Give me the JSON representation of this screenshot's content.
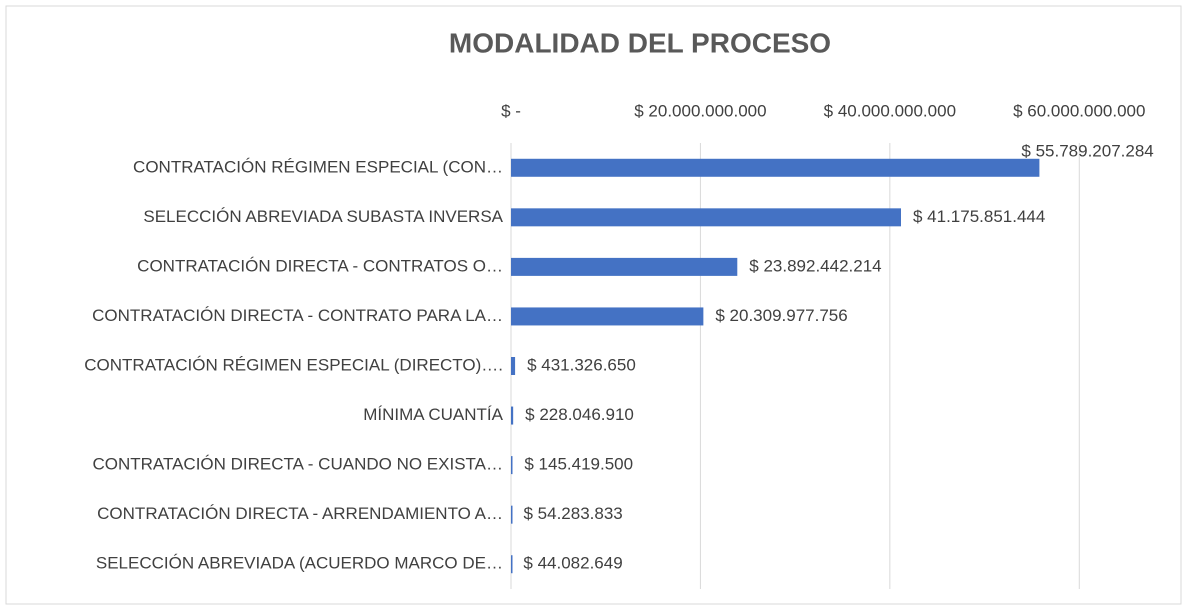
{
  "chart_data": {
    "type": "bar",
    "orientation": "horizontal",
    "title": "MODALIDAD DEL PROCESO",
    "categories": [
      "CONTRATACIÓN RÉGIMEN ESPECIAL (CON…",
      "SELECCIÓN ABREVIADA SUBASTA INVERSA",
      "CONTRATACIÓN DIRECTA - CONTRATOS O…",
      "CONTRATACIÓN DIRECTA - CONTRATO PARA LA…",
      "CONTRATACIÓN RÉGIMEN ESPECIAL (DIRECTO)….",
      "MÍNIMA CUANTÍA",
      "CONTRATACIÓN DIRECTA - CUANDO NO EXISTA…",
      "CONTRATACIÓN DIRECTA - ARRENDAMIENTO A…",
      "SELECCIÓN ABREVIADA (ACUERDO MARCO DE…"
    ],
    "values": [
      55789207284,
      41175851444,
      23892442214,
      20309977756,
      431326650,
      228046910,
      145419500,
      54283833,
      44082649
    ],
    "value_labels": [
      "$ 55.789.207.284",
      "$ 41.175.851.444",
      "$ 23.892.442.214",
      "$ 20.309.977.756",
      "$ 431.326.650",
      "$ 228.046.910",
      "$ 145.419.500",
      "$ 54.283.833",
      "$ 44.082.649"
    ],
    "color": "#4472c4",
    "xlim": [
      0,
      70000000000
    ],
    "xticks": [
      {
        "value": 0,
        "label": "$ -"
      },
      {
        "value": 20000000000,
        "label": "$ 20.000.000.000"
      },
      {
        "value": 40000000000,
        "label": "$ 40.000.000.000"
      },
      {
        "value": 60000000000,
        "label": "$ 60.000.000.000"
      }
    ],
    "grid": true
  }
}
